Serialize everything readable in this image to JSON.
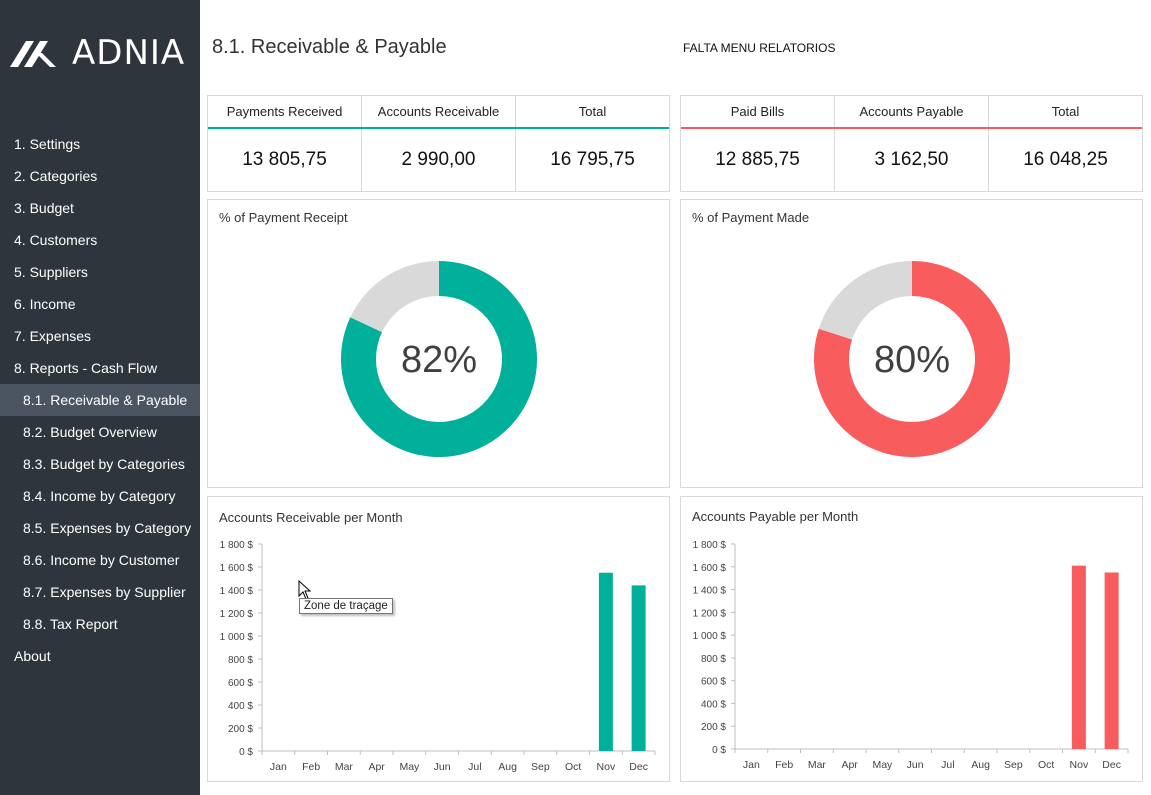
{
  "brand": {
    "logo_text": "ADNIA"
  },
  "sidebar": {
    "items": [
      {
        "label": "1. Settings",
        "level": 1,
        "active": false
      },
      {
        "label": "2. Categories",
        "level": 1,
        "active": false
      },
      {
        "label": "3. Budget",
        "level": 1,
        "active": false
      },
      {
        "label": "4. Customers",
        "level": 1,
        "active": false
      },
      {
        "label": "5. Suppliers",
        "level": 1,
        "active": false
      },
      {
        "label": "6. Income",
        "level": 1,
        "active": false
      },
      {
        "label": "7. Expenses",
        "level": 1,
        "active": false
      },
      {
        "label": "8. Reports - Cash Flow",
        "level": 1,
        "active": false
      },
      {
        "label": "8.1. Receivable & Payable",
        "level": 2,
        "active": true
      },
      {
        "label": "8.2. Budget Overview",
        "level": 2,
        "active": false
      },
      {
        "label": "8.3. Budget by Categories",
        "level": 2,
        "active": false
      },
      {
        "label": "8.4. Income by Category",
        "level": 2,
        "active": false
      },
      {
        "label": "8.5. Expenses by Category",
        "level": 2,
        "active": false
      },
      {
        "label": "8.6. Income by Customer",
        "level": 2,
        "active": false
      },
      {
        "label": "8.7. Expenses by Supplier",
        "level": 2,
        "active": false
      },
      {
        "label": "8.8. Tax Report",
        "level": 2,
        "active": false
      },
      {
        "label": "About",
        "level": 1,
        "active": false
      }
    ]
  },
  "header": {
    "title": "8.1. Receivable & Payable",
    "note": "FALTA MENU RELATORIOS"
  },
  "receivable_kpis": {
    "accent": "#00b09b",
    "headers": [
      "Payments Received",
      "Accounts Receivable",
      "Total"
    ],
    "values": [
      "13 805,75",
      "2 990,00",
      "16 795,75"
    ]
  },
  "payable_kpis": {
    "accent": "#f85c5c",
    "headers": [
      "Paid Bills",
      "Accounts Payable",
      "Total"
    ],
    "values": [
      "12 885,75",
      "3 162,50",
      "16 048,25"
    ]
  },
  "tooltip": {
    "text": "Zone de traçage"
  },
  "colors": {
    "teal": "#00b09b",
    "red": "#f85c5c",
    "grey": "#d9d9d9",
    "sidebar": "#2e353c",
    "sidebar_active": "#4a5561"
  },
  "chart_data": [
    {
      "type": "pie",
      "title": "% of Payment Receipt",
      "center_label": "82%",
      "slices": [
        {
          "value": 82,
          "color": "#00b09b"
        },
        {
          "value": 18,
          "color": "#d9d9d9"
        }
      ]
    },
    {
      "type": "pie",
      "title": "% of Payment Made",
      "center_label": "80%",
      "slices": [
        {
          "value": 80,
          "color": "#f85c5c"
        },
        {
          "value": 20,
          "color": "#d9d9d9"
        }
      ]
    },
    {
      "type": "bar",
      "title": "Accounts Receivable per Month",
      "color": "#00b09b",
      "categories": [
        "Jan",
        "Feb",
        "Mar",
        "Apr",
        "May",
        "Jun",
        "Jul",
        "Aug",
        "Sep",
        "Oct",
        "Nov",
        "Dec"
      ],
      "values": [
        0,
        0,
        0,
        0,
        0,
        0,
        0,
        0,
        0,
        0,
        1550,
        1440
      ],
      "ylim": [
        0,
        1800
      ],
      "yticks": [
        0,
        200,
        400,
        600,
        800,
        1000,
        1200,
        1400,
        1600,
        1800
      ],
      "ytick_labels": [
        "0 $",
        "200 $",
        "400 $",
        "600 $",
        "800 $",
        "1 000 $",
        "1 200 $",
        "1 400 $",
        "1 600 $",
        "1 800 $"
      ],
      "grid": false
    },
    {
      "type": "bar",
      "title": "Accounts Payable per Month",
      "color": "#f85c5c",
      "categories": [
        "Jan",
        "Feb",
        "Mar",
        "Apr",
        "May",
        "Jun",
        "Jul",
        "Aug",
        "Sep",
        "Oct",
        "Nov",
        "Dec"
      ],
      "values": [
        0,
        0,
        0,
        0,
        0,
        0,
        0,
        0,
        0,
        0,
        1610,
        1550
      ],
      "ylim": [
        0,
        1800
      ],
      "yticks": [
        0,
        200,
        400,
        600,
        800,
        1000,
        1200,
        1400,
        1600,
        1800
      ],
      "ytick_labels": [
        "0 $",
        "200 $",
        "400 $",
        "600 $",
        "800 $",
        "1 000 $",
        "1 200 $",
        "1 400 $",
        "1 600 $",
        "1 800 $"
      ],
      "grid": false
    }
  ]
}
